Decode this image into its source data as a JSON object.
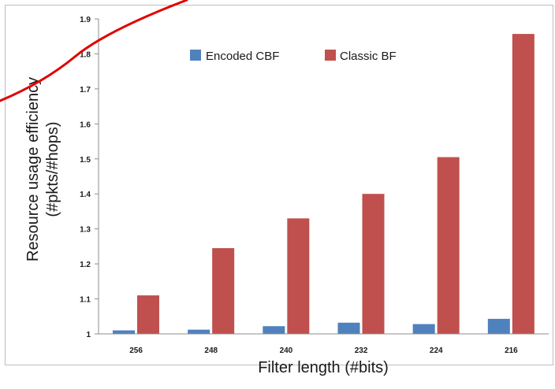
{
  "chart_data": {
    "type": "bar",
    "categories": [
      "256",
      "248",
      "240",
      "232",
      "224",
      "216"
    ],
    "series": [
      {
        "name": "Encoded CBF",
        "color": "#4f81bd",
        "values": [
          1.01,
          1.012,
          1.022,
          1.032,
          1.028,
          1.043
        ]
      },
      {
        "name": "Classic BF",
        "color": "#c0504d",
        "values": [
          1.11,
          1.245,
          1.33,
          1.4,
          1.505,
          1.857
        ]
      }
    ],
    "title": "",
    "xlabel": "Filter length (#bits)",
    "ylabel_line1": "Resource usage efficiency",
    "ylabel_line2": "(#pkts/#hops)",
    "ylim": [
      1,
      1.9
    ],
    "yticks": [
      "1",
      "1.1",
      "1.2",
      "1.3",
      "1.4",
      "1.5",
      "1.6",
      "1.7",
      "1.8",
      "1.9"
    ],
    "grid": false,
    "legend_position": "top-center",
    "annotation": {
      "type": "red-curved-stroke",
      "color": "#e00000"
    }
  }
}
